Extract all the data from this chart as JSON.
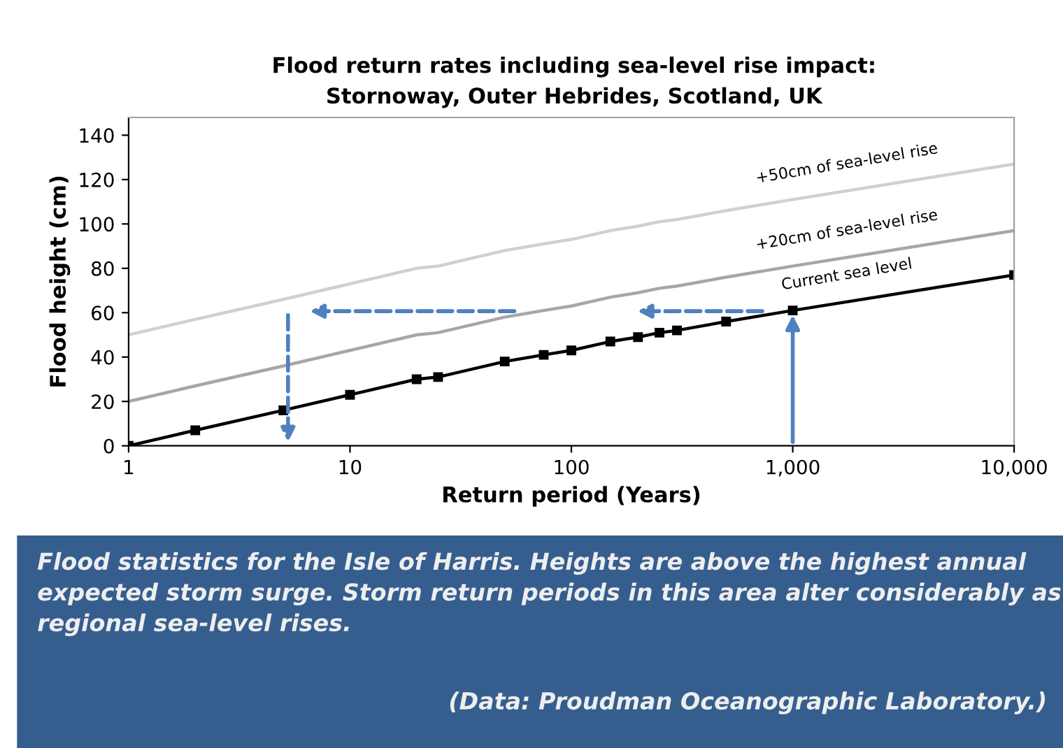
{
  "chart_data": {
    "type": "line",
    "title": "Flood return rates including sea-level rise impact:\nStornoway, Outer Hebrides, Scotland, UK",
    "xlabel": "Return period (Years)",
    "ylabel": "Flood height (cm)",
    "x": [
      1,
      2,
      5,
      10,
      20,
      25,
      50,
      75,
      100,
      150,
      200,
      250,
      300,
      500,
      1000,
      10000
    ],
    "series": [
      {
        "name": "+50cm of sea-level rise",
        "color": "#d0d0d0",
        "marker": "none",
        "values": [
          50,
          57,
          66,
          73,
          80,
          81,
          88,
          91,
          93,
          97,
          99,
          101,
          102,
          106,
          111,
          127
        ]
      },
      {
        "name": "+20cm of sea-level rise",
        "color": "#a6a6a6",
        "marker": "none",
        "values": [
          20,
          27,
          36,
          43,
          50,
          51,
          58,
          61,
          63,
          67,
          69,
          71,
          72,
          76,
          81,
          97
        ]
      },
      {
        "name": "Current sea level",
        "color": "#000000",
        "marker": "square",
        "values": [
          0,
          7,
          16,
          23,
          30,
          31,
          38,
          41,
          43,
          47,
          49,
          51,
          52,
          56,
          61,
          77
        ]
      }
    ],
    "log": "x",
    "xlim": [
      1,
      10000
    ],
    "xticks": [
      1,
      10,
      100,
      {
        "value": 1000,
        "label": "1,000"
      },
      {
        "value": 10000,
        "label": "10,000"
      }
    ],
    "ylim": [
      0,
      148
    ],
    "yticks": [
      0,
      20,
      40,
      60,
      80,
      100,
      120,
      140
    ],
    "grid": false,
    "legend": false,
    "annotations": [
      "Flood statistics for the Isle of Harris. Heights are above the highest annual expected storm surge. Storm return periods in this area alter considerably as regional sea-level rises.",
      "(Data: Proudman Oceanographic Laboratory.)"
    ]
  }
}
